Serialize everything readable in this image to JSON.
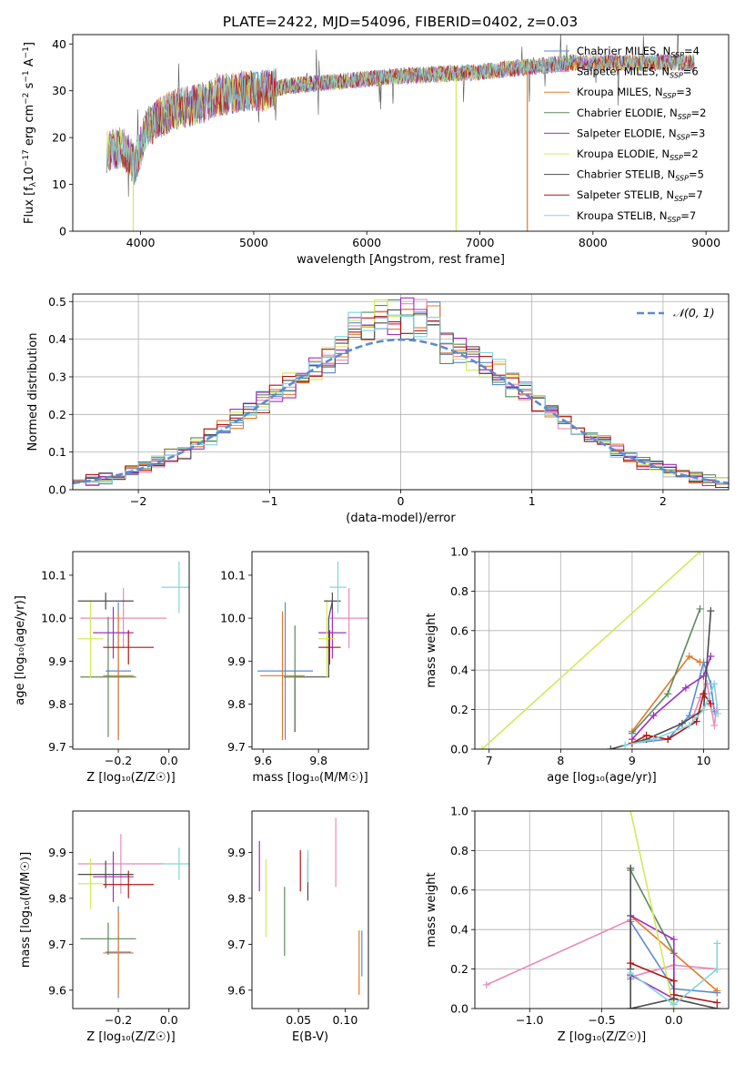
{
  "figure": {
    "title": "PLATE=2422, MJD=54096, FIBERID=0402, z=0.03"
  },
  "colors": {
    "Chabrier MILES": "#5b8ad6",
    "Salpeter MILES": "#e88ab8",
    "Kroupa MILES": "#e07a2a",
    "Chabrier ELODIE": "#5a8a5a",
    "Salpeter ELODIE": "#a02fc0",
    "Kroupa ELODIE": "#d4e85a",
    "Chabrier STELIB": "#4d4d4d",
    "Salpeter STELIB": "#b01515",
    "Kroupa STELIB": "#7fd6dc"
  },
  "chart_data": [
    {
      "type": "line",
      "panel": "spectrum",
      "xlabel": "wavelength [Angstrom, rest frame]",
      "ylabel_parts": [
        "Flux [f",
        "λ",
        "10",
        "−17",
        " erg cm",
        "−2",
        " s",
        "−1",
        " A",
        "−1",
        "]"
      ],
      "xlim": [
        3400,
        9200
      ],
      "ylim": [
        0,
        42
      ],
      "xticks": [
        4000,
        5000,
        6000,
        7000,
        8000,
        9000
      ],
      "yticks": [
        0,
        10,
        20,
        30,
        40
      ],
      "legend_placement": "upper right",
      "series": [
        {
          "name": "Chabrier MILES",
          "n_ssp": "4"
        },
        {
          "name": "Salpeter MILES",
          "n_ssp": "6"
        },
        {
          "name": "Kroupa MILES",
          "n_ssp": "3"
        },
        {
          "name": "Chabrier ELODIE",
          "n_ssp": "2"
        },
        {
          "name": "Salpeter ELODIE",
          "n_ssp": "3"
        },
        {
          "name": "Kroupa ELODIE",
          "n_ssp": "2"
        },
        {
          "name": "Chabrier STELIB",
          "n_ssp": "5"
        },
        {
          "name": "Salpeter STELIB",
          "n_ssp": "7"
        },
        {
          "name": "Kroupa STELIB",
          "n_ssp": "7"
        }
      ],
      "continuum": {
        "x": [
          3700,
          3850,
          3950,
          4050,
          4150,
          4300,
          4500,
          4700,
          4900,
          5100,
          5300,
          5500,
          5800,
          6200,
          6600,
          7000,
          7400,
          7800,
          8200,
          8600,
          8900
        ],
        "y": [
          17,
          18,
          14,
          22,
          24,
          26,
          27,
          29,
          30,
          30,
          31,
          31.5,
          32,
          33,
          33.5,
          34,
          35,
          36,
          36,
          36,
          36
        ]
      },
      "dips": [
        {
          "x": 3935,
          "y": 0,
          "series": "Kroupa ELODIE"
        },
        {
          "x": 6790,
          "y": 0,
          "series": "Kroupa ELODIE"
        },
        {
          "x": 7420,
          "y": 0,
          "series": "Kroupa MILES"
        }
      ]
    },
    {
      "type": "line",
      "panel": "residual histogram",
      "xlabel": "(data-model)/error",
      "ylabel": "Normed distribution",
      "xlim": [
        -2.5,
        2.5
      ],
      "ylim": [
        0,
        0.52
      ],
      "xticks": [
        -2,
        -1,
        0,
        1,
        2
      ],
      "xtick_labels": [
        "−2",
        "−1",
        "0",
        "1",
        "2"
      ],
      "yticks": [
        0,
        0.1,
        0.2,
        0.3,
        0.4,
        0.5
      ],
      "ytick_labels": [
        "0.0",
        "0.1",
        "0.2",
        "0.3",
        "0.4",
        "0.5"
      ],
      "grid": true,
      "legend_placement": "upper right",
      "reference_curve": "𝒩(0, 1)",
      "bin_width": 0.1
    },
    {
      "type": "scatter",
      "panel": "age vs Z",
      "xlabel": "Z [log₁₀(Z/Z☉)]",
      "ylabel": "age  [log₁₀(age/yr)]",
      "xlim": [
        -0.38,
        0.08
      ],
      "ylim": [
        9.695,
        10.155
      ],
      "xticks": [
        -0.2,
        0.0
      ],
      "xtick_labels": [
        "−0.2",
        "0.0"
      ],
      "yticks": [
        9.7,
        9.8,
        9.9,
        10.0,
        10.1
      ],
      "ytick_labels": [
        "9.7",
        "9.8",
        "9.9",
        "10.0",
        "10.1"
      ],
      "points": [
        {
          "series": "Chabrier MILES",
          "x": -0.2,
          "xerr": 0.05,
          "y": 9.877,
          "yerr": 0.16
        },
        {
          "series": "Salpeter MILES",
          "x": -0.18,
          "xerr": 0.17,
          "y": 10.0,
          "yerr": 0.07
        },
        {
          "series": "Kroupa MILES",
          "x": -0.2,
          "xerr": 0.06,
          "y": 9.866,
          "yerr": 0.15
        },
        {
          "series": "Chabrier ELODIE",
          "x": -0.24,
          "xerr": 0.11,
          "y": 9.863,
          "yerr": 0.14
        },
        {
          "series": "Salpeter ELODIE",
          "x": -0.22,
          "xerr": 0.08,
          "y": 9.966,
          "yerr": 0.06
        },
        {
          "series": "Kroupa ELODIE",
          "x": -0.31,
          "xerr": 0.05,
          "y": 9.952,
          "yerr": 0.09
        },
        {
          "series": "Chabrier STELIB",
          "x": -0.25,
          "xerr": 0.11,
          "y": 10.04,
          "yerr": 0.02
        },
        {
          "series": "Salpeter STELIB",
          "x": -0.16,
          "xerr": 0.1,
          "y": 9.932,
          "yerr": 0.04
        },
        {
          "series": "Kroupa STELIB",
          "x": 0.04,
          "xerr": 0.07,
          "y": 10.072,
          "yerr": 0.06
        }
      ]
    },
    {
      "type": "scatter",
      "panel": "age vs mass",
      "xlabel": "mass [log₁₀(M/M☉)]",
      "ylabel": "",
      "xlim": [
        9.56,
        9.98
      ],
      "ylim": [
        9.695,
        10.155
      ],
      "xticks": [
        9.6,
        9.8
      ],
      "xtick_labels": [
        "9.6",
        "9.8"
      ],
      "yticks": [
        9.7,
        9.8,
        9.9,
        10.0,
        10.1
      ],
      "ytick_labels": [
        "9.7",
        "9.8",
        "9.9",
        "10.0",
        "10.1"
      ],
      "points": [
        {
          "series": "Chabrier MILES",
          "x": 9.68,
          "xerr": 0.1,
          "y": 9.877,
          "yerr": 0.16
        },
        {
          "series": "Salpeter MILES",
          "x": 9.91,
          "xerr": 0.07,
          "y": 10.0,
          "yerr": 0.07
        },
        {
          "series": "Kroupa MILES",
          "x": 9.67,
          "xerr": 0.08,
          "y": 9.866,
          "yerr": 0.15
        },
        {
          "series": "Chabrier ELODIE",
          "x": 9.715,
          "xerr": 0.04,
          "y": 9.863,
          "yerr": 0.12
        },
        {
          "series": "Salpeter ELODIE",
          "x": 9.85,
          "xerr": 0.05,
          "y": 9.966,
          "yerr": 0.06
        },
        {
          "series": "Kroupa ELODIE",
          "x": 9.83,
          "xerr": 0.03,
          "y": 9.952,
          "yerr": 0.09
        },
        {
          "series": "Chabrier STELIB",
          "x": 9.85,
          "xerr": 0.03,
          "y": 10.04,
          "yerr": 0.02
        },
        {
          "series": "Salpeter STELIB",
          "x": 9.84,
          "xerr": 0.04,
          "y": 9.932,
          "yerr": 0.04
        },
        {
          "series": "Kroupa STELIB",
          "x": 9.87,
          "xerr": 0.03,
          "y": 10.072,
          "yerr": 0.06
        }
      ],
      "connectors": [
        {
          "series": "Chabrier STELIB",
          "x": [
            9.715,
            9.715,
            9.837,
            9.837,
            9.85
          ],
          "y": [
            9.735,
            9.863,
            9.863,
            10.0,
            10.04
          ]
        }
      ]
    },
    {
      "type": "line",
      "panel": "mass weight vs age",
      "xlabel": "age  [log₁₀(age/yr)]",
      "ylabel": "mass weight",
      "xlim": [
        6.8,
        10.35
      ],
      "ylim": [
        0,
        1.0
      ],
      "xticks": [
        7,
        8,
        9,
        10
      ],
      "yticks": [
        0,
        0.2,
        0.4,
        0.6,
        0.8,
        1.0
      ],
      "ytick_labels": [
        "0.0",
        "0.2",
        "0.4",
        "0.6",
        "0.8",
        "1.0"
      ],
      "grid": true,
      "series": [
        {
          "name": "Chabrier MILES",
          "x": [
            9.0,
            9.5,
            9.8,
            10.0,
            10.1,
            10.15
          ],
          "y": [
            0.03,
            0.05,
            0.17,
            0.44,
            0.33,
            0.19
          ]
        },
        {
          "name": "Salpeter MILES",
          "x": [
            9.85,
            9.95,
            10.05,
            10.1,
            10.15,
            10.18
          ],
          "y": [
            0.16,
            0.26,
            0.33,
            0.22,
            0.12,
            0.2
          ]
        },
        {
          "name": "Kroupa MILES",
          "x": [
            9.0,
            9.8,
            9.95
          ],
          "y": [
            0.09,
            0.47,
            0.44
          ]
        },
        {
          "name": "Chabrier ELODIE",
          "x": [
            9.0,
            9.5,
            9.95
          ],
          "y": [
            0.08,
            0.28,
            0.71
          ]
        },
        {
          "name": "Salpeter ELODIE",
          "x": [
            9.0,
            9.3,
            9.75,
            10.0,
            10.1
          ],
          "y": [
            0.05,
            0.17,
            0.31,
            0.37,
            0.47
          ]
        },
        {
          "name": "Kroupa ELODIE",
          "x": [
            6.9,
            9.95
          ],
          "y": [
            0.0,
            1.0
          ]
        },
        {
          "name": "Chabrier STELIB",
          "x": [
            8.7,
            9.2,
            9.7,
            10.0,
            10.1
          ],
          "y": [
            0.0,
            0.05,
            0.13,
            0.2,
            0.7
          ]
        },
        {
          "name": "Salpeter STELIB",
          "x": [
            9.0,
            9.2,
            9.5,
            9.9,
            10.0,
            10.1
          ],
          "y": [
            0.03,
            0.07,
            0.05,
            0.14,
            0.28,
            0.23
          ]
        },
        {
          "name": "Kroupa STELIB",
          "x": [
            8.9,
            9.3,
            9.8,
            10.0,
            10.15,
            10.2
          ],
          "y": [
            0.02,
            0.05,
            0.12,
            0.2,
            0.33,
            0.18
          ]
        }
      ]
    },
    {
      "type": "scatter",
      "panel": "mass vs Z",
      "xlabel": "Z [log₁₀(Z/Z☉)]",
      "ylabel": "mass [log₁₀(M/M☉)]",
      "xlim": [
        -0.38,
        0.08
      ],
      "ylim": [
        9.56,
        9.99
      ],
      "xticks": [
        -0.2,
        0.0
      ],
      "xtick_labels": [
        "−0.2",
        "0.0"
      ],
      "yticks": [
        9.6,
        9.7,
        9.8,
        9.9
      ],
      "ytick_labels": [
        "9.6",
        "9.7",
        "9.8",
        "9.9"
      ],
      "points": [
        {
          "series": "Chabrier MILES",
          "x": -0.2,
          "xerr": 0.05,
          "y": 9.683,
          "yerr": 0.1
        },
        {
          "series": "Salpeter MILES",
          "x": -0.19,
          "xerr": 0.17,
          "y": 9.875,
          "yerr": 0.065
        },
        {
          "series": "Kroupa MILES",
          "x": -0.2,
          "xerr": 0.06,
          "y": 9.681,
          "yerr": 0.09
        },
        {
          "series": "Chabrier ELODIE",
          "x": -0.24,
          "xerr": 0.11,
          "y": 9.712,
          "yerr": 0.035
        },
        {
          "series": "Salpeter ELODIE",
          "x": -0.22,
          "xerr": 0.08,
          "y": 9.847,
          "yerr": 0.055
        },
        {
          "series": "Kroupa ELODIE",
          "x": -0.31,
          "xerr": 0.05,
          "y": 9.832,
          "yerr": 0.055
        },
        {
          "series": "Chabrier STELIB",
          "x": -0.25,
          "xerr": 0.11,
          "y": 9.852,
          "yerr": 0.03
        },
        {
          "series": "Salpeter STELIB",
          "x": -0.16,
          "xerr": 0.1,
          "y": 9.83,
          "yerr": 0.03
        },
        {
          "series": "Kroupa STELIB",
          "x": 0.04,
          "xerr": 0.07,
          "y": 9.875,
          "yerr": 0.035
        }
      ]
    },
    {
      "type": "scatter",
      "panel": "mass vs E(B-V)",
      "xlabel": "E(B-V)",
      "ylabel": "",
      "xlim": [
        0.0,
        0.125
      ],
      "ylim": [
        9.56,
        9.99
      ],
      "xticks": [
        0.05,
        0.1
      ],
      "xtick_labels": [
        "0.05",
        "0.10"
      ],
      "yticks": [
        9.6,
        9.7,
        9.8,
        9.9
      ],
      "ytick_labels": [
        "9.6",
        "9.7",
        "9.8",
        "9.9"
      ],
      "points": [
        {
          "series": "Chabrier MILES",
          "x": 0.118,
          "y": 9.68,
          "yerr": 0.05
        },
        {
          "series": "Salpeter MILES",
          "x": 0.09,
          "y": 9.9,
          "yerr": 0.075
        },
        {
          "series": "Kroupa MILES",
          "x": 0.115,
          "y": 9.66,
          "yerr": 0.07
        },
        {
          "series": "Chabrier ELODIE",
          "x": 0.035,
          "y": 9.75,
          "yerr": 0.075
        },
        {
          "series": "Salpeter ELODIE",
          "x": 0.008,
          "y": 9.87,
          "yerr": 0.055
        },
        {
          "series": "Kroupa ELODIE",
          "x": 0.015,
          "y": 9.8,
          "yerr": 0.085
        },
        {
          "series": "Chabrier STELIB",
          "x": 0.06,
          "y": 9.84,
          "yerr": 0.045
        },
        {
          "series": "Salpeter STELIB",
          "x": 0.052,
          "y": 9.86,
          "yerr": 0.045
        },
        {
          "series": "Kroupa STELIB",
          "x": 0.06,
          "y": 9.87,
          "yerr": 0.035
        }
      ]
    },
    {
      "type": "line",
      "panel": "mass weight vs Z",
      "xlabel": "Z [log₁₀(Z/Z☉)]",
      "ylabel": "mass weight",
      "xlim": [
        -1.38,
        0.38
      ],
      "ylim": [
        0,
        1.0
      ],
      "xticks": [
        -1.0,
        -0.5,
        0.0
      ],
      "xtick_labels": [
        "−1.0",
        "−0.5",
        "0.0"
      ],
      "yticks": [
        0,
        0.2,
        0.4,
        0.6,
        0.8,
        1.0
      ],
      "ytick_labels": [
        "0.0",
        "0.2",
        "0.4",
        "0.6",
        "0.8",
        "1.0"
      ],
      "grid": true,
      "series": [
        {
          "name": "Chabrier MILES",
          "x": [
            -0.3,
            -0.3,
            0.0,
            0.3
          ],
          "y": [
            0.15,
            0.44,
            0.1,
            0.08
          ]
        },
        {
          "name": "Salpeter MILES",
          "x": [
            -1.3,
            -0.3,
            -0.3,
            0.0,
            0.3
          ],
          "y": [
            0.12,
            0.45,
            0.16,
            0.22,
            0.2
          ]
        },
        {
          "name": "Kroupa MILES",
          "x": [
            -0.3,
            0.3
          ],
          "y": [
            0.47,
            0.09
          ]
        },
        {
          "name": "Chabrier ELODIE",
          "x": [
            -0.3,
            -0.3,
            0.0,
            0.0
          ],
          "y": [
            0.71,
            0.7,
            0.28,
            0.05
          ]
        },
        {
          "name": "Salpeter ELODIE",
          "x": [
            -0.3,
            0.0,
            0.0,
            -0.3
          ],
          "y": [
            0.47,
            0.35,
            0.05,
            0.17
          ]
        },
        {
          "name": "Kroupa ELODIE",
          "x": [
            -0.3,
            0.0
          ],
          "y": [
            1.0,
            0.0
          ]
        },
        {
          "name": "Chabrier STELIB",
          "x": [
            -0.3,
            -0.3,
            -0.3,
            0.0,
            0.3
          ],
          "y": [
            0.71,
            0.2,
            0.0,
            0.05,
            0.0
          ]
        },
        {
          "name": "Salpeter STELIB",
          "x": [
            -0.3,
            0.0,
            0.0,
            0.3
          ],
          "y": [
            0.23,
            0.14,
            0.07,
            0.03
          ]
        },
        {
          "name": "Kroupa STELIB",
          "x": [
            -0.3,
            0.0,
            0.3,
            0.3
          ],
          "y": [
            0.18,
            0.02,
            0.2,
            0.33
          ]
        }
      ]
    }
  ]
}
